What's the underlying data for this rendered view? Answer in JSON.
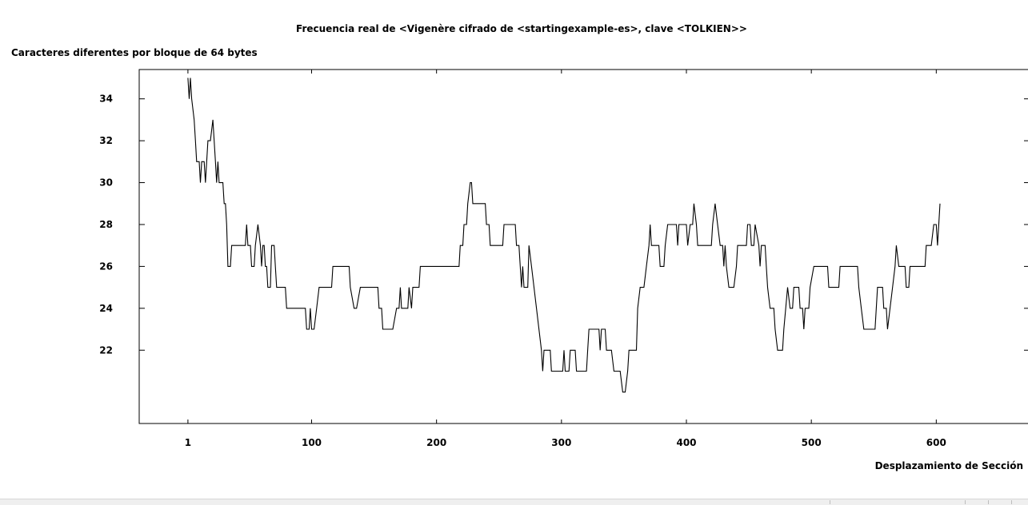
{
  "chart_data": {
    "type": "line",
    "title": "Frecuencia real de <Vigenère cifrado de <startingexample-es>, clave <TOLKIEN>>",
    "ylabel": "Caracteres diferentes por bloque de 64 bytes",
    "xlabel": "Desplazamiento de Sección",
    "x_ticks": [
      1,
      100,
      200,
      300,
      400,
      500,
      600
    ],
    "y_ticks": [
      22,
      24,
      26,
      28,
      30,
      32,
      34
    ],
    "xlim": [
      -38,
      692
    ],
    "ylim": [
      18.5,
      35.4
    ],
    "grid": false,
    "line_color": "#000000",
    "series": [
      {
        "points": [
          [
            1,
            35
          ],
          [
            2,
            34
          ],
          [
            3,
            35
          ],
          [
            4,
            34
          ],
          [
            6,
            33
          ],
          [
            7,
            32
          ],
          [
            8,
            31
          ],
          [
            10,
            31
          ],
          [
            11,
            30
          ],
          [
            12,
            31
          ],
          [
            14,
            31
          ],
          [
            15,
            30
          ],
          [
            17,
            32
          ],
          [
            19,
            32
          ],
          [
            21,
            33
          ],
          [
            22,
            32
          ],
          [
            23,
            31
          ],
          [
            24,
            30
          ],
          [
            25,
            31
          ],
          [
            26,
            30
          ],
          [
            29,
            30
          ],
          [
            30,
            29
          ],
          [
            31,
            29
          ],
          [
            32,
            28
          ],
          [
            33,
            26
          ],
          [
            35,
            26
          ],
          [
            36,
            27
          ],
          [
            47,
            27
          ],
          [
            48,
            28
          ],
          [
            49,
            27
          ],
          [
            51,
            27
          ],
          [
            52,
            26
          ],
          [
            54,
            26
          ],
          [
            55,
            27
          ],
          [
            57,
            28
          ],
          [
            59,
            27
          ],
          [
            60,
            26
          ],
          [
            61,
            27
          ],
          [
            62,
            27
          ],
          [
            63,
            26
          ],
          [
            64,
            26
          ],
          [
            65,
            25
          ],
          [
            67,
            25
          ],
          [
            68,
            27
          ],
          [
            70,
            27
          ],
          [
            71,
            26
          ],
          [
            72,
            25
          ],
          [
            79,
            25
          ],
          [
            80,
            24
          ],
          [
            95,
            24
          ],
          [
            96,
            23
          ],
          [
            98,
            23
          ],
          [
            99,
            24
          ],
          [
            100,
            23
          ],
          [
            102,
            23
          ],
          [
            104,
            24
          ],
          [
            106,
            25
          ],
          [
            116,
            25
          ],
          [
            117,
            26
          ],
          [
            130,
            26
          ],
          [
            131,
            25
          ],
          [
            134,
            24
          ],
          [
            136,
            24
          ],
          [
            139,
            25
          ],
          [
            153,
            25
          ],
          [
            154,
            24
          ],
          [
            156,
            24
          ],
          [
            157,
            23
          ],
          [
            163,
            23
          ],
          [
            165,
            23
          ],
          [
            168,
            24
          ],
          [
            170,
            24
          ],
          [
            171,
            25
          ],
          [
            172,
            24
          ],
          [
            177,
            24
          ],
          [
            178,
            25
          ],
          [
            180,
            24
          ],
          [
            181,
            25
          ],
          [
            186,
            25
          ],
          [
            187,
            26
          ],
          [
            218,
            26
          ],
          [
            219,
            27
          ],
          [
            221,
            27
          ],
          [
            222,
            28
          ],
          [
            224,
            28
          ],
          [
            225,
            29
          ],
          [
            227,
            30
          ],
          [
            228,
            30
          ],
          [
            229,
            29
          ],
          [
            239,
            29
          ],
          [
            240,
            28
          ],
          [
            242,
            28
          ],
          [
            243,
            27
          ],
          [
            253,
            27
          ],
          [
            254,
            28
          ],
          [
            263,
            28
          ],
          [
            264,
            27
          ],
          [
            266,
            27
          ],
          [
            267,
            26
          ],
          [
            268,
            25
          ],
          [
            269,
            26
          ],
          [
            270,
            25
          ],
          [
            273,
            25
          ],
          [
            274,
            27
          ],
          [
            276,
            26
          ],
          [
            284,
            22
          ],
          [
            285,
            21
          ],
          [
            286,
            22
          ],
          [
            291,
            22
          ],
          [
            292,
            21
          ],
          [
            301,
            21
          ],
          [
            302,
            22
          ],
          [
            303,
            21
          ],
          [
            306,
            21
          ],
          [
            307,
            22
          ],
          [
            311,
            22
          ],
          [
            312,
            21
          ],
          [
            320,
            21
          ],
          [
            321,
            22
          ],
          [
            322,
            23
          ],
          [
            330,
            23
          ],
          [
            331,
            22
          ],
          [
            332,
            23
          ],
          [
            335,
            23
          ],
          [
            336,
            22
          ],
          [
            340,
            22
          ],
          [
            342,
            21
          ],
          [
            347,
            21
          ],
          [
            349,
            20
          ],
          [
            351,
            20
          ],
          [
            353,
            21
          ],
          [
            354,
            22
          ],
          [
            360,
            22
          ],
          [
            361,
            24
          ],
          [
            363,
            25
          ],
          [
            366,
            25
          ],
          [
            368,
            26
          ],
          [
            370,
            27
          ],
          [
            371,
            28
          ],
          [
            372,
            27
          ],
          [
            378,
            27
          ],
          [
            379,
            26
          ],
          [
            382,
            26
          ],
          [
            383,
            27
          ],
          [
            385,
            28
          ],
          [
            392,
            28
          ],
          [
            393,
            27
          ],
          [
            394,
            28
          ],
          [
            400,
            28
          ],
          [
            401,
            27
          ],
          [
            403,
            28
          ],
          [
            405,
            28
          ],
          [
            406,
            29
          ],
          [
            408,
            28
          ],
          [
            409,
            27
          ],
          [
            420,
            27
          ],
          [
            421,
            28
          ],
          [
            423,
            29
          ],
          [
            425,
            28
          ],
          [
            427,
            27
          ],
          [
            429,
            27
          ],
          [
            430,
            26
          ],
          [
            431,
            27
          ],
          [
            432,
            26
          ],
          [
            434,
            25
          ],
          [
            438,
            25
          ],
          [
            440,
            26
          ],
          [
            441,
            27
          ],
          [
            448,
            27
          ],
          [
            449,
            28
          ],
          [
            451,
            28
          ],
          [
            452,
            27
          ],
          [
            454,
            27
          ],
          [
            455,
            28
          ],
          [
            458,
            27
          ],
          [
            459,
            26
          ],
          [
            460,
            27
          ],
          [
            463,
            27
          ],
          [
            464,
            26
          ],
          [
            465,
            25
          ],
          [
            467,
            24
          ],
          [
            470,
            24
          ],
          [
            471,
            23
          ],
          [
            473,
            22
          ],
          [
            477,
            22
          ],
          [
            478,
            23
          ],
          [
            481,
            25
          ],
          [
            483,
            24
          ],
          [
            485,
            24
          ],
          [
            486,
            25
          ],
          [
            490,
            25
          ],
          [
            491,
            24
          ],
          [
            493,
            24
          ],
          [
            494,
            23
          ],
          [
            495,
            24
          ],
          [
            498,
            24
          ],
          [
            499,
            25
          ],
          [
            502,
            26
          ],
          [
            513,
            26
          ],
          [
            514,
            25
          ],
          [
            522,
            25
          ],
          [
            523,
            26
          ],
          [
            537,
            26
          ],
          [
            538,
            25
          ],
          [
            540,
            24
          ],
          [
            542,
            23
          ],
          [
            551,
            23
          ],
          [
            553,
            25
          ],
          [
            557,
            25
          ],
          [
            558,
            24
          ],
          [
            560,
            24
          ],
          [
            561,
            23
          ],
          [
            565,
            25
          ],
          [
            567,
            26
          ],
          [
            568,
            27
          ],
          [
            570,
            26
          ],
          [
            575,
            26
          ],
          [
            576,
            25
          ],
          [
            578,
            25
          ],
          [
            579,
            26
          ],
          [
            591,
            26
          ],
          [
            592,
            27
          ],
          [
            596,
            27
          ],
          [
            598,
            28
          ],
          [
            600,
            28
          ],
          [
            601,
            27
          ],
          [
            603,
            29
          ]
        ]
      }
    ]
  }
}
